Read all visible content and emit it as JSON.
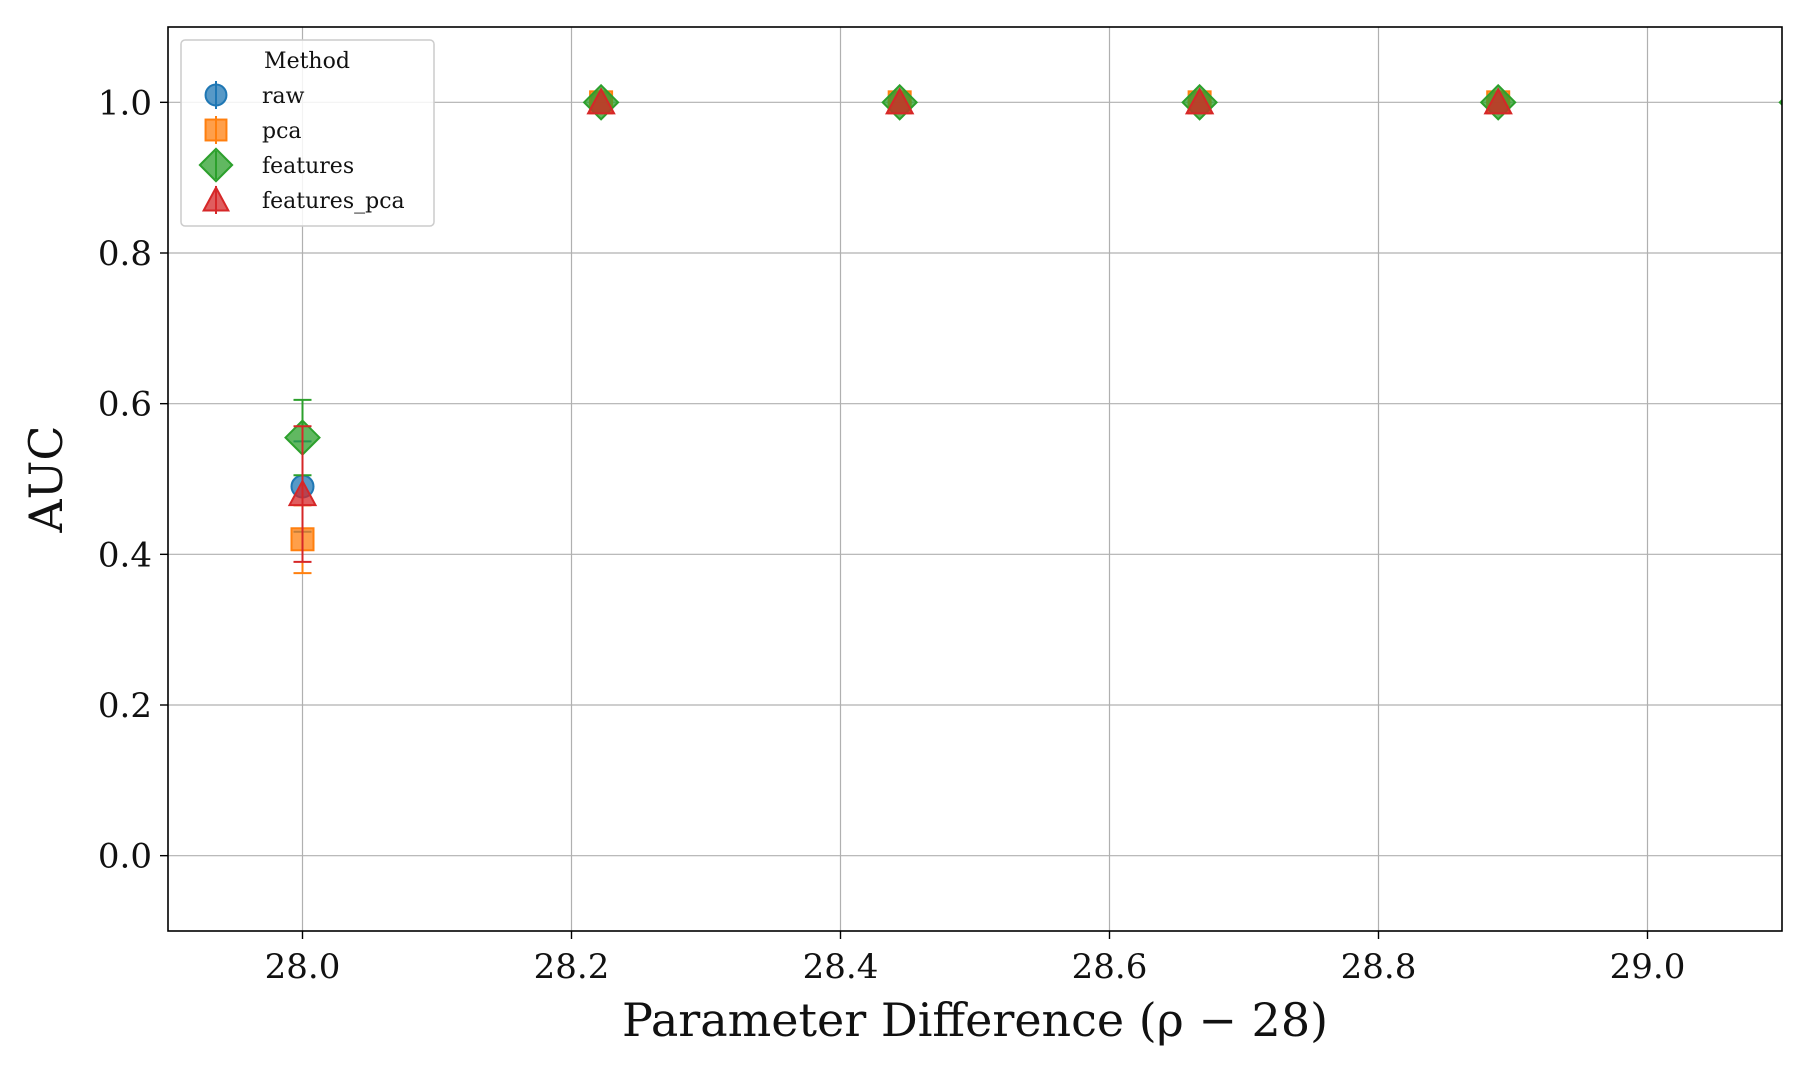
{
  "chart_data": {
    "type": "scatter",
    "xlabel": "Parameter Difference (ρ − 28)",
    "ylabel": "AUC",
    "xlim": [
      27.9,
      29.1
    ],
    "ylim": [
      -0.1,
      1.1
    ],
    "xticks": [
      28.0,
      28.2,
      28.4,
      28.6,
      28.8,
      29.0
    ],
    "xtick_labels": [
      "28.0",
      "28.2",
      "28.4",
      "28.6",
      "28.8",
      "29.0"
    ],
    "yticks": [
      0.0,
      0.2,
      0.4,
      0.6,
      0.8,
      1.0
    ],
    "ytick_labels": [
      "0.0",
      "0.2",
      "0.4",
      "0.6",
      "0.8",
      "1.0"
    ],
    "grid": true,
    "legend": {
      "title": "Method",
      "placement": "top-left"
    },
    "x": [
      28.0,
      28.222,
      28.444,
      28.667,
      28.889,
      29.111
    ],
    "series": [
      {
        "name": "raw",
        "marker": "circle",
        "color": "#1f77b4",
        "values": [
          0.49,
          1.0,
          1.0,
          1.0,
          1.0,
          1.0
        ],
        "errors": [
          0.06,
          0.0,
          0.0,
          0.0,
          0.0,
          0.0
        ]
      },
      {
        "name": "pca",
        "marker": "square",
        "color": "#ff7f0e",
        "values": [
          0.42,
          1.0,
          1.0,
          1.0,
          1.0,
          1.0
        ],
        "errors": [
          0.045,
          0.0,
          0.0,
          0.0,
          0.0,
          0.0
        ]
      },
      {
        "name": "features",
        "marker": "diamond",
        "color": "#2ca02c",
        "values": [
          0.555,
          1.0,
          1.0,
          1.0,
          1.0,
          1.0
        ],
        "errors": [
          0.05,
          0.0,
          0.0,
          0.0,
          0.0,
          0.0
        ]
      },
      {
        "name": "features_pca",
        "marker": "triangle",
        "color": "#d62728",
        "values": [
          0.48,
          1.0,
          1.0,
          1.0,
          1.0,
          1.0
        ],
        "errors": [
          0.09,
          0.0,
          0.0,
          0.0,
          0.0,
          0.0
        ]
      }
    ]
  }
}
